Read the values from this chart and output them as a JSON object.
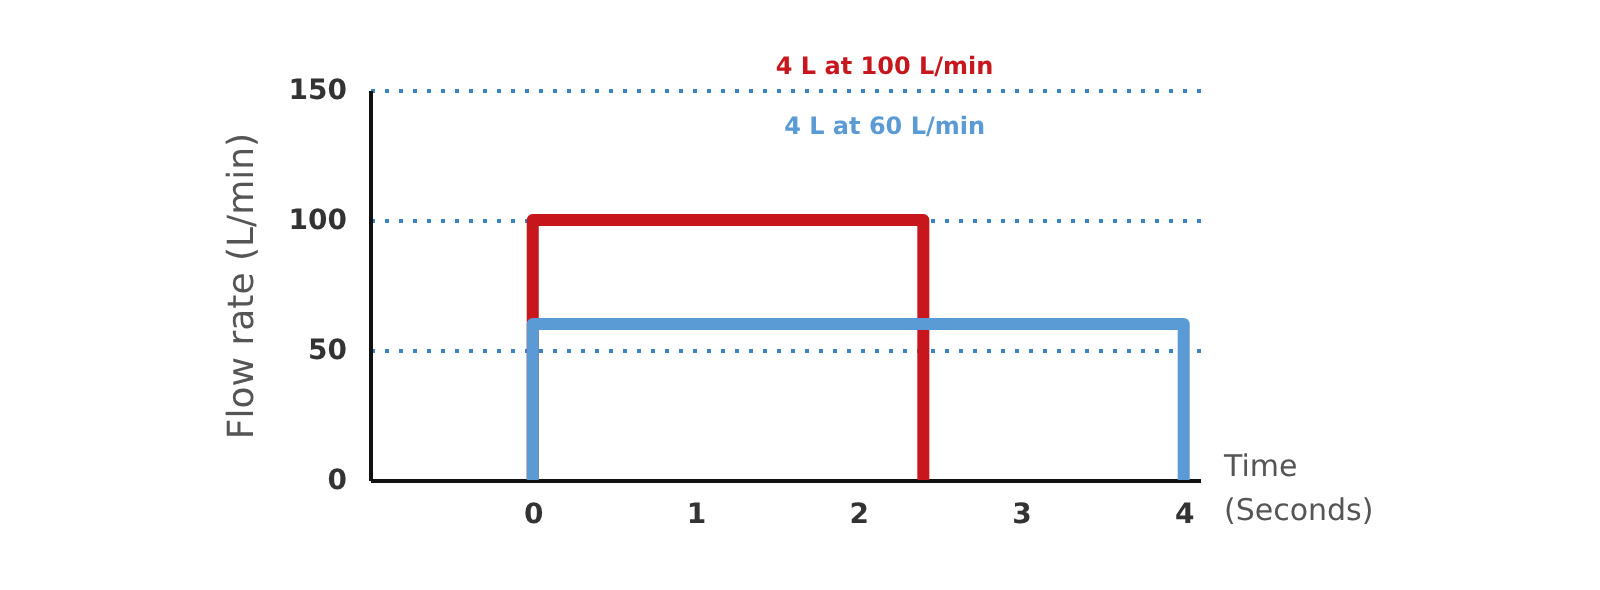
{
  "chart_data": {
    "type": "line",
    "xlabel": "Time\n(Seconds)",
    "ylabel": "Flow rate (L/min)",
    "series": [
      {
        "name": "4 L at 100 L/min",
        "color": "#c8161d",
        "x": [
          0,
          0,
          2.4,
          2.4
        ],
        "values": [
          0,
          100,
          100,
          0
        ]
      },
      {
        "name": "4 L at 60 L/min",
        "color": "#5b9bd5",
        "x": [
          0,
          0,
          4,
          4
        ],
        "values": [
          0,
          60,
          60,
          0
        ]
      }
    ],
    "xlim": [
      -1,
      4.1
    ],
    "xticks": [
      0,
      1,
      2,
      3,
      4
    ],
    "ylim": [
      0,
      150
    ],
    "yticks": [
      0,
      50,
      100,
      150
    ],
    "grid": "y",
    "legend": "top",
    "line_style": "solid",
    "marker": "none"
  }
}
